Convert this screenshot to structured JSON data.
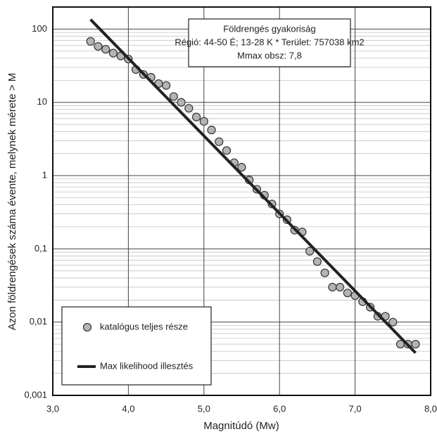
{
  "chart_data": {
    "type": "scatter",
    "xlabel": "Magnitúdó (Mw)",
    "ylabel": "Azon földrengések száma évente, melynek mérete > M",
    "annotations": [
      "Földrengés gyakoriság",
      "Régió: 44-50 É; 13-28 K * Terület: 757038 km2",
      "Mmax obsz: 7,8"
    ],
    "xlim": [
      3.0,
      8.0
    ],
    "xticks": [
      {
        "value": 3.0,
        "label": "3,0"
      },
      {
        "value": 4.0,
        "label": "4,0"
      },
      {
        "value": 5.0,
        "label": "5,0"
      },
      {
        "value": 6.0,
        "label": "6,0"
      },
      {
        "value": 7.0,
        "label": "7,0"
      },
      {
        "value": 8.0,
        "label": "8,0"
      }
    ],
    "ylim": [
      0.001,
      200
    ],
    "yticks": [
      {
        "value": 0.001,
        "label": "0,001"
      },
      {
        "value": 0.01,
        "label": "0,01"
      },
      {
        "value": 0.1,
        "label": "0,1"
      },
      1,
      10,
      100
    ],
    "ylog": true,
    "grid": true,
    "legend": "lower left",
    "series": [
      {
        "name": "katalógus teljes része",
        "type": "scatter",
        "color": "#b4b4b4",
        "x": [
          3.5,
          3.6,
          3.7,
          3.8,
          3.9,
          4.0,
          4.1,
          4.2,
          4.3,
          4.4,
          4.5,
          4.6,
          4.7,
          4.8,
          4.9,
          5.0,
          5.1,
          5.2,
          5.3,
          5.4,
          5.5,
          5.6,
          5.7,
          5.8,
          5.9,
          6.0,
          6.1,
          6.2,
          6.3,
          6.4,
          6.5,
          6.6,
          6.7,
          6.8,
          6.9,
          7.0,
          7.1,
          7.2,
          7.3,
          7.4,
          7.5,
          7.6,
          7.7,
          7.8
        ],
        "values": [
          68,
          58,
          53,
          47,
          43,
          39,
          28,
          24,
          22,
          18,
          17,
          12,
          10,
          8.3,
          6.3,
          5.5,
          4.2,
          2.9,
          2.2,
          1.5,
          1.3,
          0.87,
          0.65,
          0.54,
          0.41,
          0.3,
          0.25,
          0.18,
          0.17,
          0.093,
          0.067,
          0.047,
          0.03,
          0.03,
          0.025,
          0.023,
          0.019,
          0.016,
          0.012,
          0.012,
          0.01,
          0.005,
          0.005,
          0.005
        ]
      },
      {
        "name": "Max likelihood illesztés",
        "type": "line",
        "color": "#222222",
        "x": [
          3.5,
          7.8
        ],
        "values": [
          135,
          0.0038
        ]
      }
    ]
  }
}
